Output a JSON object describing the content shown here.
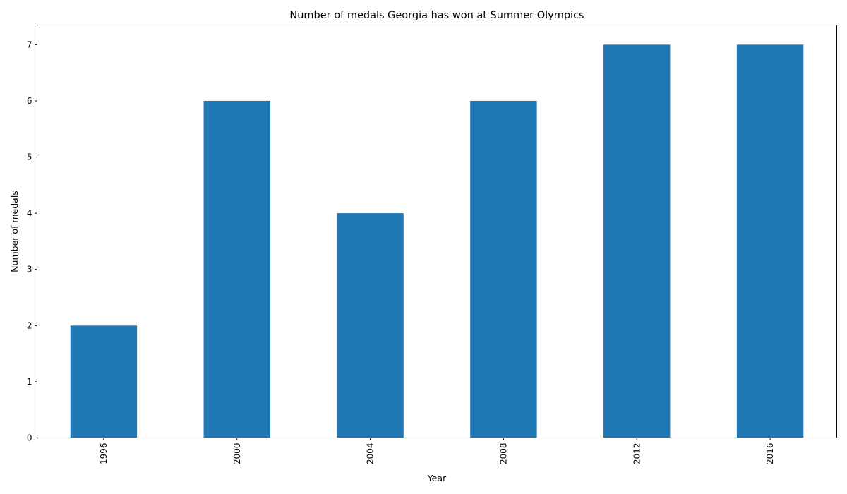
{
  "chart_data": {
    "type": "bar",
    "title": "Number of medals Georgia has won at Summer Olympics",
    "xlabel": "Year",
    "ylabel": "Number of medals",
    "categories": [
      "1996",
      "2000",
      "2004",
      "2008",
      "2012",
      "2016"
    ],
    "values": [
      2,
      6,
      4,
      6,
      7,
      7
    ],
    "ylim": [
      0,
      7.35
    ],
    "yticks": [
      "0",
      "1",
      "2",
      "3",
      "4",
      "5",
      "6",
      "7"
    ],
    "bar_color": "#1f77b4",
    "grid": false,
    "legend": "none"
  }
}
